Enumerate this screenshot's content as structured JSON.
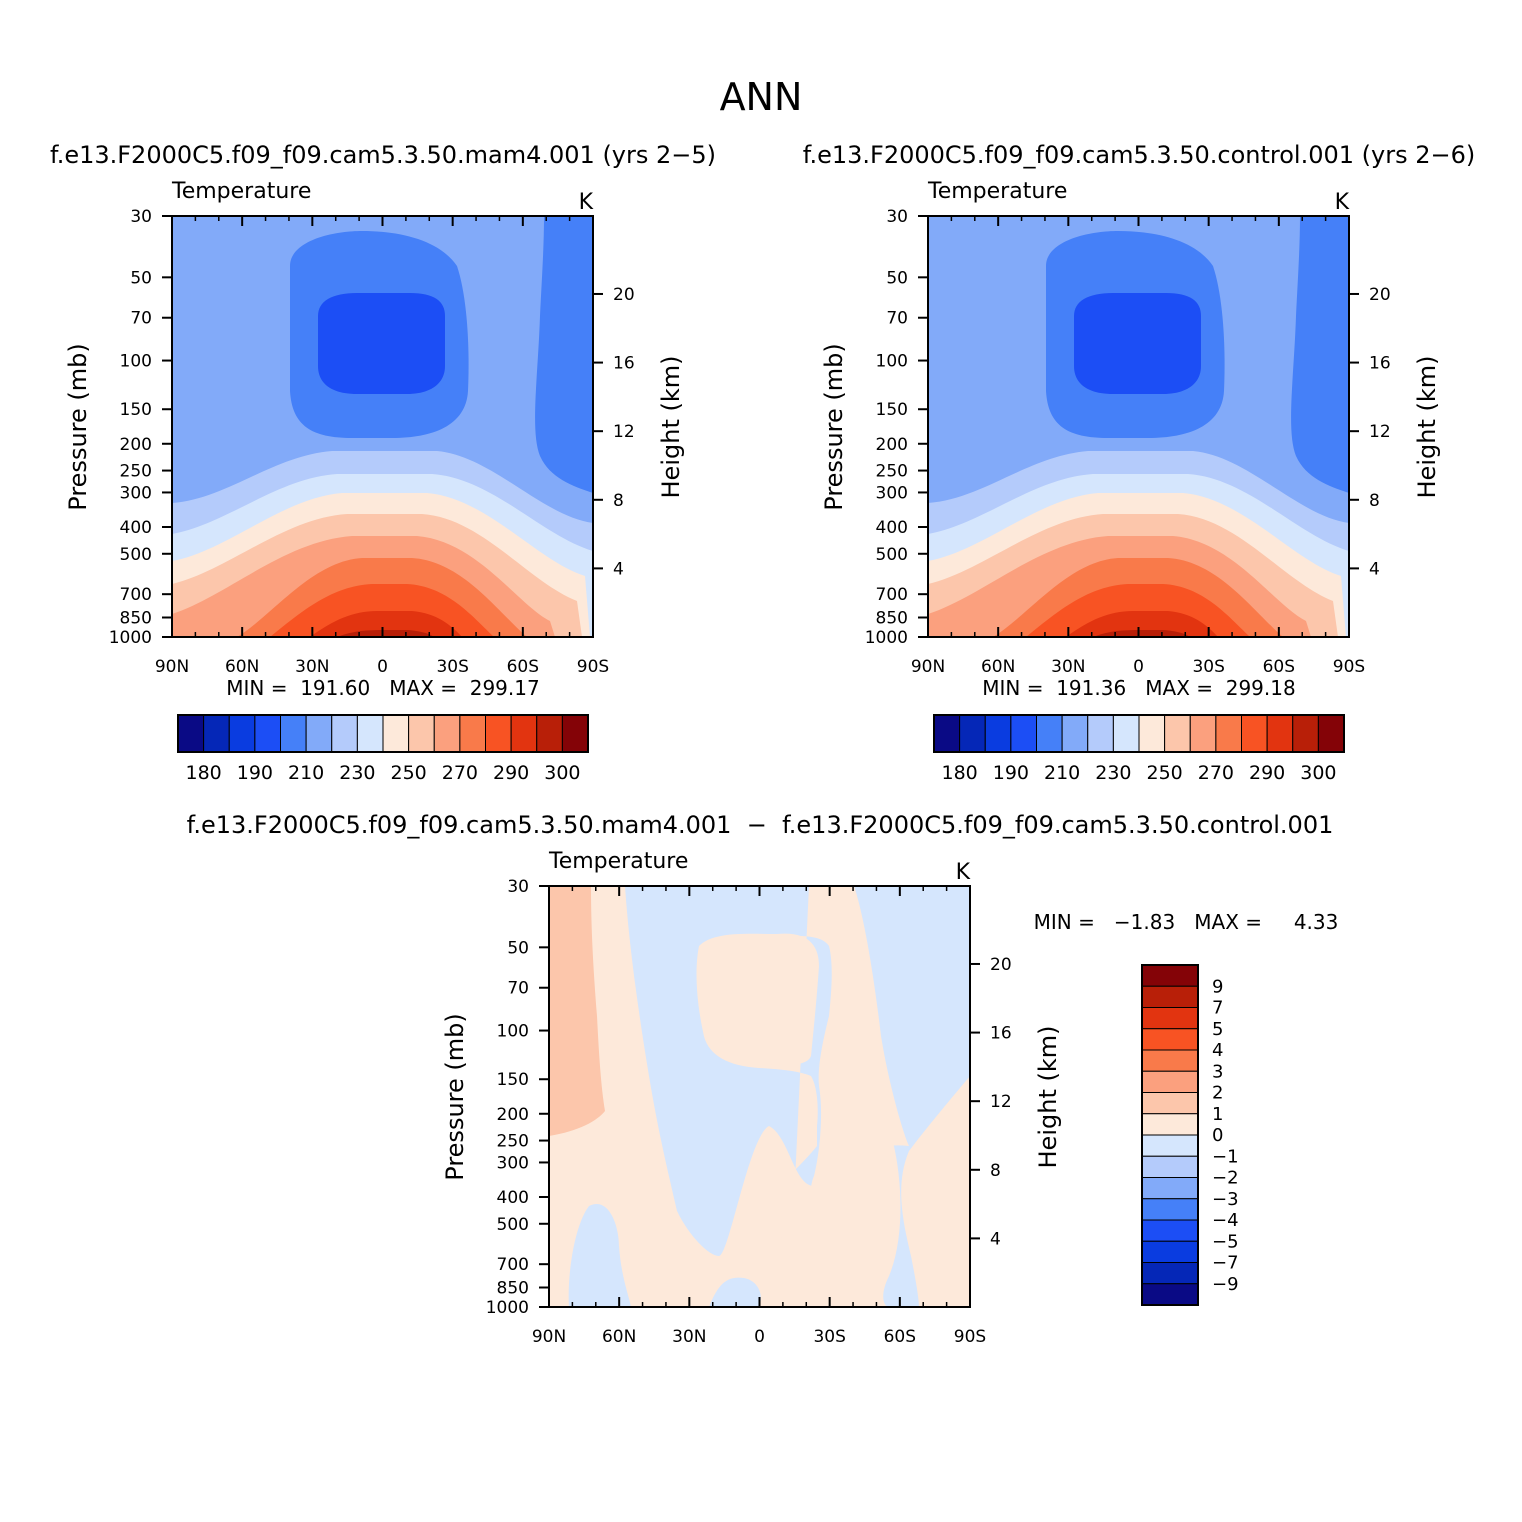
{
  "page_title": "ANN",
  "colors": {
    "temperature_scale": [
      "#0a0a85",
      "#0527b7",
      "#0a3ce0",
      "#1c4ef5",
      "#4580f8",
      "#82aaf9",
      "#b4cbfb",
      "#d5e6fd",
      "#fde9da",
      "#fcc6ab",
      "#fba07e",
      "#f97a4a",
      "#f85323",
      "#e23410",
      "#b81f08",
      "#840307"
    ],
    "difference_scale": [
      "#0a0a85",
      "#0527b7",
      "#0a3ce0",
      "#1c4ef5",
      "#4580f8",
      "#82aaf9",
      "#b4cbfb",
      "#d5e6fd",
      "#fde9da",
      "#fcc6ab",
      "#fba07e",
      "#f97a4a",
      "#f85323",
      "#e23410",
      "#b81f08",
      "#840307"
    ]
  },
  "chart_data": [
    {
      "type": "heatmap",
      "panel_title": "f.e13.F2000C5.f09_f09.cam5.3.50.mam4.001  (yrs 2−5)",
      "left_title": "Temperature",
      "units": "K",
      "ylabel": "Pressure (mb)",
      "right_ylabel": "Height (km)",
      "x_ticks": [
        "90N",
        "60N",
        "30N",
        "0",
        "30S",
        "60S",
        "90S"
      ],
      "y_ticks": [
        30,
        50,
        70,
        100,
        150,
        200,
        250,
        300,
        400,
        500,
        700,
        850,
        1000
      ],
      "right_ticks": [
        20,
        16,
        12,
        8,
        4
      ],
      "y_scale": "log",
      "min_max": "MIN =  191.60   MAX =  299.17",
      "min": 191.6,
      "max": 299.17,
      "colorbar_labels": [
        "180",
        "190",
        "210",
        "230",
        "250",
        "270",
        "290",
        "300"
      ]
    },
    {
      "type": "heatmap",
      "panel_title": "f.e13.F2000C5.f09_f09.cam5.3.50.control.001  (yrs 2−6)",
      "left_title": "Temperature",
      "units": "K",
      "ylabel": "Pressure (mb)",
      "right_ylabel": "Height (km)",
      "x_ticks": [
        "90N",
        "60N",
        "30N",
        "0",
        "30S",
        "60S",
        "90S"
      ],
      "y_ticks": [
        30,
        50,
        70,
        100,
        150,
        200,
        250,
        300,
        400,
        500,
        700,
        850,
        1000
      ],
      "right_ticks": [
        20,
        16,
        12,
        8,
        4
      ],
      "y_scale": "log",
      "min_max": "MIN =  191.36   MAX =  299.18",
      "min": 191.36,
      "max": 299.18,
      "colorbar_labels": [
        "180",
        "190",
        "210",
        "230",
        "250",
        "270",
        "290",
        "300"
      ]
    },
    {
      "type": "heatmap",
      "panel_title": "f.e13.F2000C5.f09_f09.cam5.3.50.mam4.001  −  f.e13.F2000C5.f09_f09.cam5.3.50.control.001",
      "left_title": "Temperature",
      "units": "K",
      "ylabel": "Pressure (mb)",
      "right_ylabel": "Height (km)",
      "x_ticks": [
        "90N",
        "60N",
        "30N",
        "0",
        "30S",
        "60S",
        "90S"
      ],
      "y_ticks": [
        30,
        50,
        70,
        100,
        150,
        200,
        250,
        300,
        400,
        500,
        700,
        850,
        1000
      ],
      "right_ticks": [
        20,
        16,
        12,
        8,
        4
      ],
      "y_scale": "log",
      "min_max": "MIN =   −1.83   MAX =     4.33",
      "min": -1.83,
      "max": 4.33,
      "colorbar_labels": [
        "9",
        "7",
        "5",
        "4",
        "3",
        "2",
        "1",
        "0",
        "−1",
        "−2",
        "−3",
        "−4",
        "−5",
        "−7",
        "−9"
      ]
    }
  ]
}
